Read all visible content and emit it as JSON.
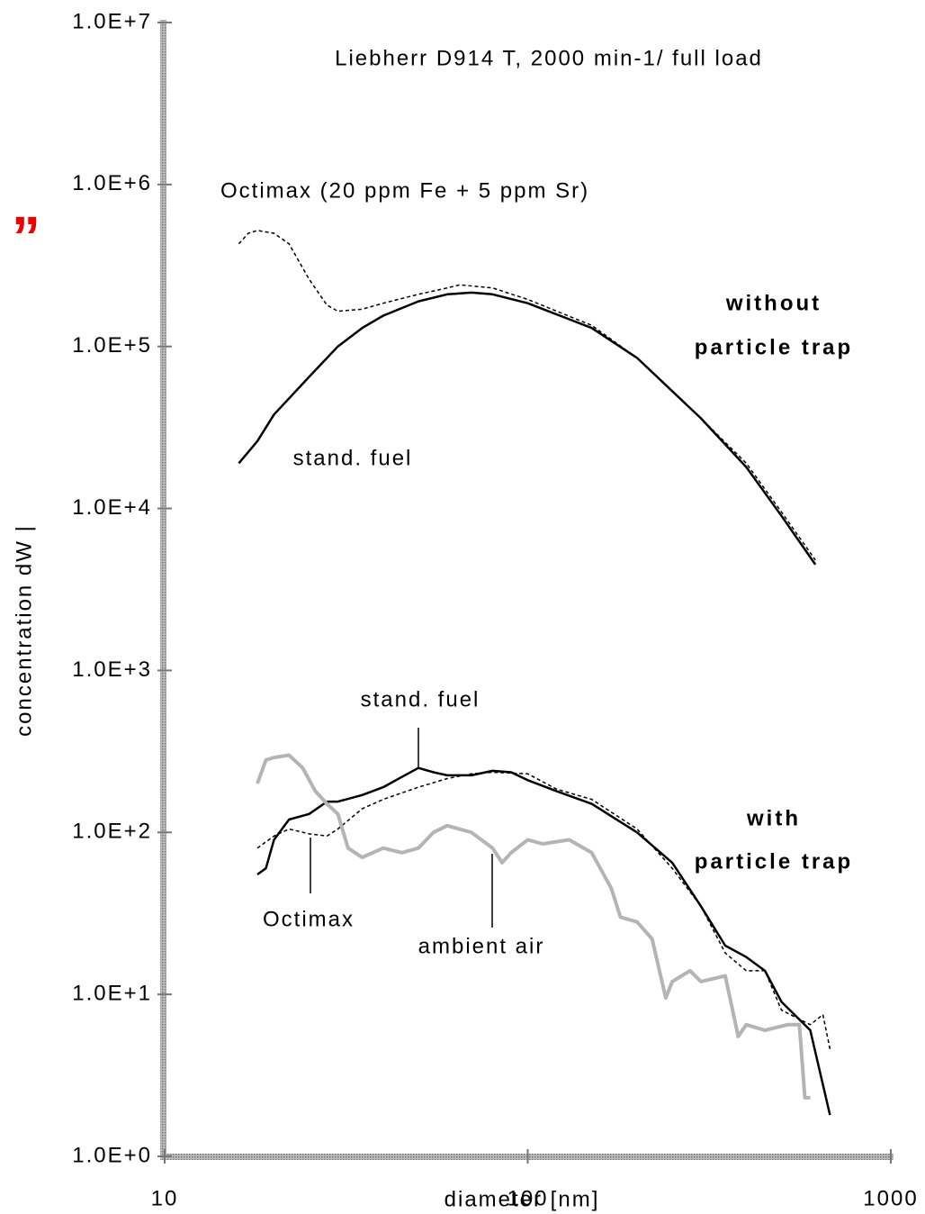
{
  "chart_data": {
    "type": "line",
    "title": "Liebherr D914 T, 2000 min-1/ full load",
    "xlabel": "diameter [nm]",
    "ylabel": "concentration dW |",
    "xscale": "log",
    "yscale": "log",
    "xlim": [
      10,
      1000
    ],
    "xticks": [
      10,
      100,
      1000
    ],
    "ylim": [
      1,
      10000000
    ],
    "yticks": [
      {
        "value": 1,
        "label": "1.0E+0"
      },
      {
        "value": 10,
        "label": "1.0E+1"
      },
      {
        "value": 100,
        "label": "1.0E+2"
      },
      {
        "value": 1000,
        "label": "1.0E+3"
      },
      {
        "value": 10000,
        "label": "1.0E+4"
      },
      {
        "value": 100000,
        "label": "1.0E+5"
      },
      {
        "value": 1000000,
        "label": "1.0E+6"
      },
      {
        "value": 10000000,
        "label": "1.0E+7"
      }
    ],
    "annotations": [
      "without",
      "particle trap",
      "with",
      "particle trap",
      "”"
    ],
    "series": [
      {
        "name": "stand. fuel",
        "color": "#000000",
        "dash": false,
        "width": 2.5,
        "x": [
          16,
          18,
          20,
          25,
          30,
          35,
          40,
          50,
          60,
          70,
          80,
          100,
          150,
          200,
          300,
          400,
          500,
          620
        ],
        "values": [
          19000,
          26000,
          38000,
          65000,
          100000,
          130000,
          155000,
          190000,
          210000,
          215000,
          210000,
          185000,
          130000,
          85000,
          36000,
          18000,
          9000,
          4500
        ]
      },
      {
        "name": "Octimax  (20 ppm Fe + 5 ppm Sr)",
        "color": "#000000",
        "dash": true,
        "width": 1.5,
        "x": [
          16,
          17,
          18,
          20,
          22,
          25,
          28,
          30,
          35,
          40,
          50,
          60,
          65,
          80,
          100,
          150,
          200,
          300,
          400,
          500,
          620
        ],
        "values": [
          430000,
          500000,
          520000,
          500000,
          430000,
          260000,
          180000,
          165000,
          170000,
          185000,
          210000,
          230000,
          240000,
          230000,
          195000,
          135000,
          85000,
          36000,
          19000,
          9500,
          4800
        ]
      },
      {
        "name": "stand. fuel",
        "color": "#000000",
        "dash": false,
        "width": 2.5,
        "x": [
          18,
          19,
          20,
          22,
          25,
          28,
          30,
          35,
          40,
          45,
          50,
          55,
          60,
          70,
          80,
          90,
          100,
          120,
          150,
          200,
          250,
          300,
          350,
          400,
          450,
          500,
          600,
          680
        ],
        "values": [
          55,
          60,
          90,
          120,
          130,
          155,
          155,
          170,
          190,
          220,
          250,
          235,
          225,
          225,
          240,
          235,
          210,
          180,
          150,
          100,
          65,
          35,
          20,
          17,
          14,
          9,
          6,
          1.8
        ]
      },
      {
        "name": "Octimax",
        "color": "#000000",
        "dash": true,
        "width": 1.5,
        "x": [
          18,
          20,
          22,
          25,
          28,
          30,
          35,
          40,
          50,
          60,
          70,
          80,
          100,
          120,
          150,
          200,
          250,
          300,
          350,
          400,
          450,
          500,
          600,
          650,
          680
        ],
        "values": [
          80,
          95,
          105,
          98,
          95,
          105,
          140,
          160,
          190,
          215,
          230,
          235,
          230,
          185,
          160,
          105,
          60,
          35,
          18,
          14,
          14,
          8,
          6.5,
          7.5,
          4.6
        ]
      },
      {
        "name": "ambient air",
        "color": "#b4b4b4",
        "dash": false,
        "width": 4,
        "x": [
          18,
          19,
          20,
          22,
          24,
          26,
          28,
          30,
          32,
          35,
          40,
          45,
          50,
          55,
          60,
          70,
          80,
          85,
          90,
          100,
          110,
          130,
          150,
          170,
          180,
          200,
          220,
          240,
          250,
          280,
          300,
          350,
          380,
          400,
          450,
          520,
          560,
          580,
          600
        ],
        "values": [
          200,
          280,
          290,
          300,
          250,
          180,
          150,
          130,
          80,
          70,
          80,
          75,
          80,
          100,
          110,
          100,
          80,
          65,
          75,
          90,
          85,
          90,
          75,
          45,
          30,
          28,
          22,
          9.5,
          12,
          14,
          12,
          13,
          5.5,
          6.5,
          6,
          6.5,
          6.5,
          2.3,
          2.3
        ]
      }
    ]
  }
}
